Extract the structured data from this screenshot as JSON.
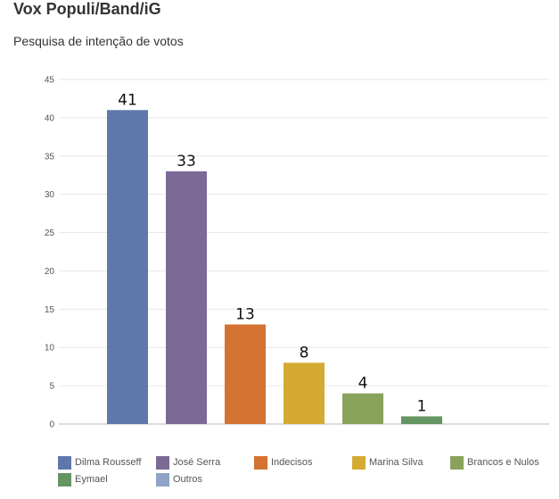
{
  "title": "Vox Populi/Band/iG",
  "subtitle": "Pesquisa de intenção de votos",
  "chart_data": {
    "type": "bar",
    "categories": [
      "Dilma Rousseff",
      "José Serra",
      "Indecisos",
      "Marina Silva",
      "Brancos e Nulos",
      "Eymael",
      "Outros"
    ],
    "values": [
      41,
      33,
      13,
      8,
      4,
      1,
      0
    ],
    "data_labels": [
      "41",
      "33",
      "13",
      "8",
      "4",
      "1",
      ""
    ],
    "colors": [
      "#5f78ab",
      "#7b6a96",
      "#d47231",
      "#d4aa33",
      "#8aa35b",
      "#649462",
      "#8fa3c7"
    ],
    "ylim": [
      0,
      45
    ],
    "yticks": [
      "0",
      "5",
      "10",
      "15",
      "20",
      "25",
      "30",
      "35",
      "40",
      "45"
    ],
    "grid": true,
    "legend": {
      "position": "bottom",
      "entries": [
        "Dilma Rousseff",
        "José Serra",
        "Indecisos",
        "Marina Silva",
        "Brancos e Nulos",
        "Eymael",
        "Outros"
      ]
    }
  }
}
